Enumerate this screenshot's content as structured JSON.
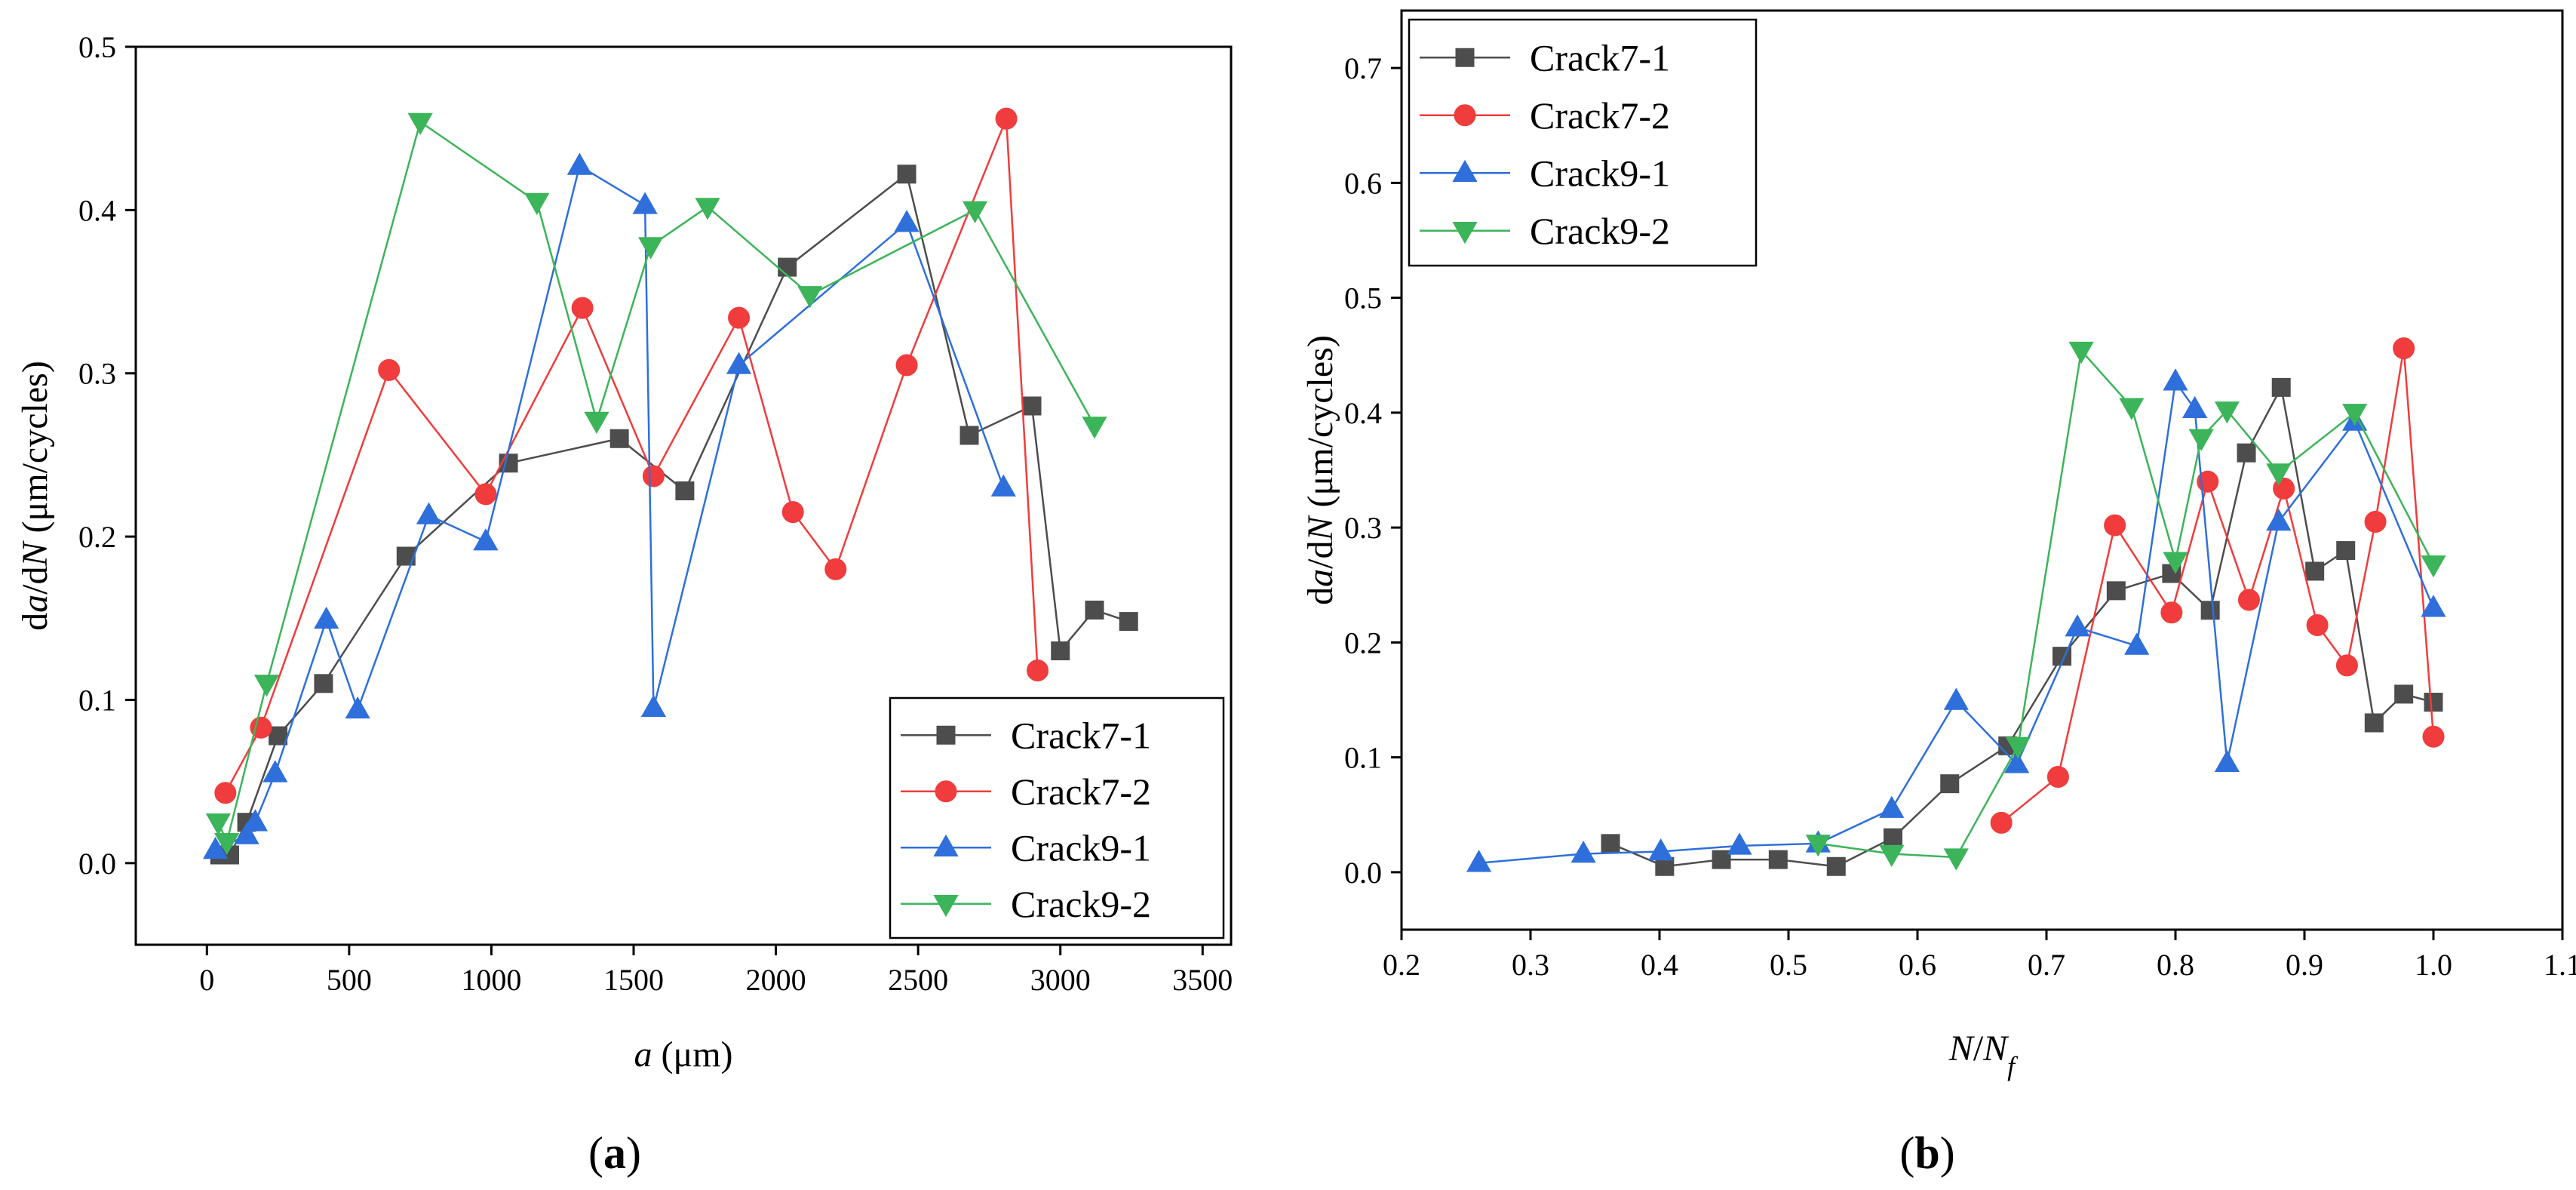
{
  "figure": {
    "panels": [
      {
        "id": "a",
        "panel_label": "a",
        "xlabel_parts": [
          {
            "t": "a",
            "italic": true
          },
          {
            "t": " (μm)",
            "italic": false
          }
        ],
        "ylabel_parts": [
          {
            "t": "d",
            "italic": false
          },
          {
            "t": "a",
            "italic": true
          },
          {
            "t": "/d",
            "italic": false
          },
          {
            "t": "N",
            "italic": true
          },
          {
            "t": " (μm/cycles)",
            "italic": false
          }
        ],
        "legend_position": "bottom-right"
      },
      {
        "id": "b",
        "panel_label": "b",
        "xlabel_parts": [
          {
            "t": "N",
            "italic": true
          },
          {
            "t": "/",
            "italic": false
          },
          {
            "t": "N",
            "italic": true
          },
          {
            "t": "f",
            "italic": true,
            "sub": true
          }
        ],
        "ylabel_parts": [
          {
            "t": "d",
            "italic": false
          },
          {
            "t": "a",
            "italic": true
          },
          {
            "t": "/d",
            "italic": false
          },
          {
            "t": "N",
            "italic": true
          },
          {
            "t": " (μm/cycles)",
            "italic": false
          }
        ],
        "legend_position": "top-left"
      }
    ]
  },
  "series_styles": [
    {
      "name": "Crack7-1",
      "color": "#4d4d4d",
      "marker": "square"
    },
    {
      "name": "Crack7-2",
      "color": "#f03c3c",
      "marker": "circle"
    },
    {
      "name": "Crack9-1",
      "color": "#2e6fdb",
      "marker": "triangle-up"
    },
    {
      "name": "Crack9-2",
      "color": "#3cb45a",
      "marker": "triangle-down"
    }
  ],
  "chart_data": [
    {
      "type": "line",
      "xlim": [
        -250,
        3600
      ],
      "ylim": [
        -0.05,
        0.5
      ],
      "xticks": [
        "0",
        "500",
        "1000",
        "1500",
        "2000",
        "2500",
        "3000",
        "3500"
      ],
      "xtick_values": [
        0,
        500,
        1000,
        1500,
        2000,
        2500,
        3000,
        3500
      ],
      "yticks": [
        "0.0",
        "0.1",
        "0.2",
        "0.3",
        "0.4",
        "0.5"
      ],
      "ytick_values": [
        0,
        0.1,
        0.2,
        0.3,
        0.4,
        0.5
      ],
      "grid": false,
      "legend": "bottom-right",
      "series": [
        {
          "name": "Crack7-1",
          "x": [
            45,
            80,
            140,
            250,
            410,
            700,
            1060,
            1450,
            1680,
            2040,
            2460,
            2680,
            2900,
            3000,
            3120,
            3240
          ],
          "y": [
            0.005,
            0.005,
            0.025,
            0.078,
            0.11,
            0.188,
            0.245,
            0.26,
            0.228,
            0.365,
            0.422,
            0.262,
            0.28,
            0.13,
            0.155,
            0.148
          ]
        },
        {
          "name": "Crack7-2",
          "x": [
            65,
            190,
            640,
            980,
            1320,
            1570,
            1870,
            2060,
            2210,
            2460,
            2810,
            2920
          ],
          "y": [
            0.043,
            0.083,
            0.302,
            0.226,
            0.34,
            0.237,
            0.334,
            0.215,
            0.18,
            0.305,
            0.456,
            0.118
          ]
        },
        {
          "name": "Crack9-1",
          "x": [
            30,
            140,
            170,
            240,
            420,
            530,
            780,
            980,
            1310,
            1540,
            1570,
            1870,
            2460,
            2800
          ],
          "y": [
            0.008,
            0.017,
            0.025,
            0.055,
            0.149,
            0.094,
            0.213,
            0.197,
            0.427,
            0.403,
            0.095,
            0.305,
            0.392,
            0.23
          ]
        },
        {
          "name": "Crack9-2",
          "x": [
            40,
            70,
            210,
            750,
            1160,
            1370,
            1560,
            1760,
            2120,
            2700,
            3120
          ],
          "y": [
            0.025,
            0.013,
            0.11,
            0.454,
            0.405,
            0.271,
            0.378,
            0.402,
            0.348,
            0.4,
            0.268
          ]
        }
      ]
    },
    {
      "type": "line",
      "xlim": [
        0.2,
        1.1
      ],
      "ylim": [
        -0.05,
        0.75
      ],
      "xticks": [
        "0.2",
        "0.3",
        "0.4",
        "0.5",
        "0.6",
        "0.7",
        "0.8",
        "0.9",
        "1.0",
        "1.1"
      ],
      "xtick_values": [
        0.2,
        0.3,
        0.4,
        0.5,
        0.6,
        0.7,
        0.8,
        0.9,
        1.0,
        1.1
      ],
      "yticks": [
        "0.0",
        "0.1",
        "0.2",
        "0.3",
        "0.4",
        "0.5",
        "0.6",
        "0.7"
      ],
      "ytick_values": [
        0,
        0.1,
        0.2,
        0.3,
        0.4,
        0.5,
        0.6,
        0.7
      ],
      "grid": false,
      "legend": "top-left",
      "series": [
        {
          "name": "Crack7-1",
          "x": [
            0.362,
            0.404,
            0.448,
            0.492,
            0.537,
            0.581,
            0.625,
            0.67,
            0.712,
            0.754,
            0.797,
            0.827,
            0.855,
            0.882,
            0.908,
            0.932,
            0.954,
            0.977,
            1.0
          ],
          "y": [
            0.025,
            0.005,
            0.011,
            0.011,
            0.005,
            0.03,
            0.077,
            0.11,
            0.188,
            0.245,
            0.26,
            0.228,
            0.365,
            0.422,
            0.262,
            0.28,
            0.13,
            0.155,
            0.148
          ]
        },
        {
          "name": "Crack7-2",
          "x": [
            0.665,
            0.709,
            0.753,
            0.797,
            0.825,
            0.857,
            0.884,
            0.91,
            0.933,
            0.955,
            0.977,
            1.0
          ],
          "y": [
            0.043,
            0.083,
            0.302,
            0.226,
            0.34,
            0.237,
            0.334,
            0.215,
            0.18,
            0.305,
            0.456,
            0.118
          ]
        },
        {
          "name": "Crack9-1",
          "x": [
            0.26,
            0.341,
            0.401,
            0.462,
            0.523,
            0.58,
            0.63,
            0.677,
            0.724,
            0.77,
            0.8,
            0.815,
            0.84,
            0.88,
            0.939,
            1.0
          ],
          "y": [
            0.008,
            0.016,
            0.018,
            0.023,
            0.025,
            0.055,
            0.149,
            0.094,
            0.213,
            0.197,
            0.427,
            0.403,
            0.095,
            0.305,
            0.392,
            0.23
          ]
        },
        {
          "name": "Crack9-2",
          "x": [
            0.523,
            0.58,
            0.63,
            0.678,
            0.727,
            0.766,
            0.8,
            0.82,
            0.84,
            0.88,
            0.939,
            1.0
          ],
          "y": [
            0.025,
            0.016,
            0.013,
            0.11,
            0.454,
            0.405,
            0.271,
            0.378,
            0.402,
            0.348,
            0.4,
            0.268
          ]
        }
      ]
    }
  ]
}
